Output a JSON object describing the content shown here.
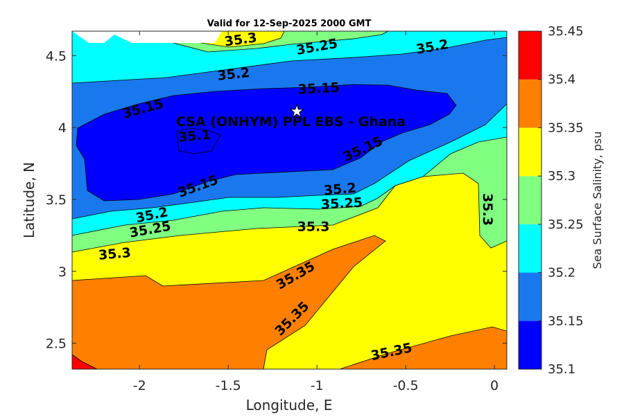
{
  "chart_data": {
    "type": "contour",
    "title": "Valid for 12-Sep-2025 2000 GMT",
    "xlabel": "Longitude, E",
    "ylabel": "Latitude, N",
    "xlim": [
      -2.38,
      0.07
    ],
    "ylim": [
      2.32,
      4.67
    ],
    "xticks": [
      -2,
      -1.5,
      -1,
      -0.5,
      0
    ],
    "xtick_labels": [
      "-2",
      "-1.5",
      "-1",
      "-0.5",
      "0"
    ],
    "yticks": [
      2.5,
      3,
      3.5,
      4,
      4.5
    ],
    "ytick_labels": [
      "2.5",
      "3",
      "3.5",
      "4",
      "4.5"
    ],
    "grid": false,
    "colorbar": {
      "label": "Sea Surface Salinity, psu",
      "levels": [
        35.1,
        35.15,
        35.2,
        35.25,
        35.3,
        35.35,
        35.4,
        35.45
      ],
      "tick_labels": [
        "35.1",
        "35.15",
        "35.2",
        "35.25",
        "35.3",
        "35.35",
        "35.4",
        "35.45"
      ],
      "colors": [
        "#0000ff",
        "#1a78ee",
        "#00ffff",
        "#80ff80",
        "#ffff00",
        "#ff8000",
        "#ff0000"
      ]
    },
    "contour_labels": [
      {
        "text": "35.3",
        "lon": -1.43,
        "lat": 4.61,
        "rot": -8
      },
      {
        "text": "35.25",
        "lon": -1.0,
        "lat": 4.56,
        "rot": -10
      },
      {
        "text": "35.2",
        "lon": -0.35,
        "lat": 4.56,
        "rot": -10
      },
      {
        "text": "35.2",
        "lon": -1.47,
        "lat": 4.37,
        "rot": -6
      },
      {
        "text": "35.15",
        "lon": -0.99,
        "lat": 4.27,
        "rot": -3
      },
      {
        "text": "35.15",
        "lon": -1.98,
        "lat": 4.13,
        "rot": -15
      },
      {
        "text": "35.1",
        "lon": -1.69,
        "lat": 3.94,
        "rot": -5
      },
      {
        "text": "35.15",
        "lon": -0.74,
        "lat": 3.85,
        "rot": -25
      },
      {
        "text": "35.15",
        "lon": -1.67,
        "lat": 3.59,
        "rot": -20
      },
      {
        "text": "35.2",
        "lon": -0.87,
        "lat": 3.57,
        "rot": -5
      },
      {
        "text": "35.25",
        "lon": -0.86,
        "lat": 3.47,
        "rot": -3
      },
      {
        "text": "35.2",
        "lon": -1.93,
        "lat": 3.39,
        "rot": -12
      },
      {
        "text": "35.25",
        "lon": -1.94,
        "lat": 3.29,
        "rot": -10
      },
      {
        "text": "35.3",
        "lon": -1.02,
        "lat": 3.31,
        "rot": 0
      },
      {
        "text": "35.3",
        "lon": -0.04,
        "lat": 3.43,
        "rot": 90
      },
      {
        "text": "35.3",
        "lon": -2.14,
        "lat": 3.12,
        "rot": -5
      },
      {
        "text": "35.35",
        "lon": -1.12,
        "lat": 2.97,
        "rot": -30
      },
      {
        "text": "35.35",
        "lon": -1.14,
        "lat": 2.67,
        "rot": -45
      },
      {
        "text": "35.35",
        "lon": -0.58,
        "lat": 2.44,
        "rot": -12
      }
    ],
    "annotation": {
      "text": "CSA (ONHYM) PPL EBS  - Ghana",
      "marker": "white-star",
      "lon": -1.1,
      "lat": 4.11
    }
  }
}
